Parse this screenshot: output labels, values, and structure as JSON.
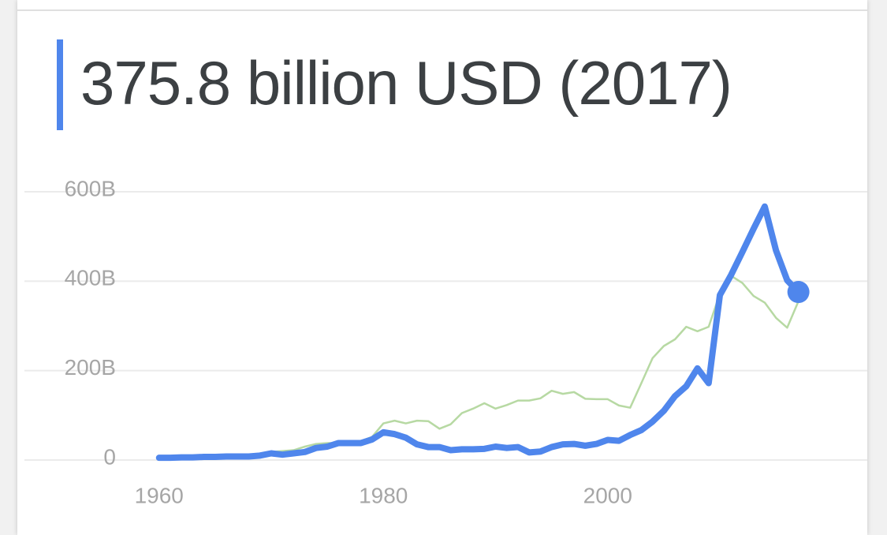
{
  "chart_data": {
    "type": "line",
    "title": "375.8 billion USD (2017)",
    "x": [
      1960,
      1961,
      1962,
      1963,
      1964,
      1965,
      1966,
      1967,
      1968,
      1969,
      1970,
      1971,
      1972,
      1973,
      1974,
      1975,
      1976,
      1977,
      1978,
      1979,
      1980,
      1981,
      1982,
      1983,
      1984,
      1985,
      1986,
      1987,
      1988,
      1989,
      1990,
      1991,
      1992,
      1993,
      1994,
      1995,
      1996,
      1997,
      1998,
      1999,
      2000,
      2001,
      2002,
      2003,
      2004,
      2005,
      2006,
      2007,
      2008,
      2009,
      2010,
      2011,
      2012,
      2013,
      2014,
      2015,
      2016,
      2017
    ],
    "series": [
      {
        "color": "#b7d9a3",
        "values": [
          5,
          5,
          6,
          6,
          7,
          8,
          9,
          10,
          12,
          14,
          18,
          20,
          22,
          30,
          36,
          38,
          38,
          40,
          42,
          52,
          82,
          88,
          82,
          88,
          87,
          70,
          80,
          105,
          115,
          127,
          115,
          123,
          133,
          133,
          138,
          155,
          148,
          152,
          137,
          136,
          136,
          122,
          117,
          172,
          228,
          255,
          270,
          298,
          288,
          298,
          372,
          412,
          396,
          367,
          352,
          318,
          296,
          355
        ]
      },
      {
        "color": "#4f86ec",
        "values": [
          5,
          5,
          6,
          6,
          7,
          7,
          8,
          8,
          8,
          10,
          15,
          12,
          15,
          18,
          27,
          30,
          38,
          38,
          38,
          46,
          62,
          58,
          50,
          35,
          29,
          29,
          22,
          24,
          24,
          25,
          30,
          27,
          29,
          17,
          19,
          29,
          35,
          36,
          32,
          36,
          45,
          43,
          56,
          67,
          86,
          110,
          143,
          165,
          205,
          172,
          369,
          414,
          465,
          517,
          567,
          469,
          402,
          375.8
        ]
      }
    ],
    "xlim": [
      1948,
      2023
    ],
    "xticks": [
      1960,
      1980,
      2000
    ],
    "ylim": [
      0,
      600
    ],
    "yticks": [
      0,
      {
        "value": 200,
        "label": "200B"
      },
      {
        "value": 400,
        "label": "400B"
      },
      {
        "value": 600,
        "label": "600B"
      }
    ],
    "grid": true
  }
}
